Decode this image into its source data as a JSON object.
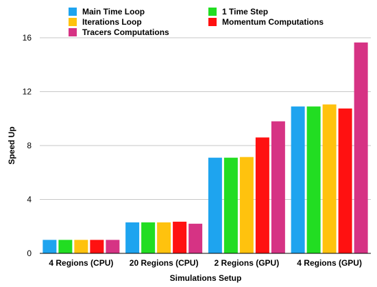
{
  "chart_data": {
    "type": "bar",
    "title": "",
    "xlabel": "Simulations Setup",
    "ylabel": "Speed Up",
    "ylim": [
      0,
      16
    ],
    "yticks": [
      "0",
      "4",
      "8",
      "12",
      "16"
    ],
    "grid": "horizontal",
    "legend_position": "top",
    "categories": [
      "4 Regions (CPU)",
      "20 Regions (CPU)",
      "2 Regions (GPU)",
      "4 Regions (GPU)"
    ],
    "series": [
      {
        "name": "Main Time Loop",
        "color": "#1ea4ef",
        "values": [
          1.0,
          2.3,
          7.1,
          10.9
        ]
      },
      {
        "name": "1 Time Step",
        "color": "#22dd22",
        "values": [
          1.0,
          2.3,
          7.1,
          10.9
        ]
      },
      {
        "name": "Iterations Loop",
        "color": "#ffc20e",
        "values": [
          1.0,
          2.3,
          7.15,
          11.05
        ]
      },
      {
        "name": "Momentum Computations",
        "color": "#ff1111",
        "values": [
          1.0,
          2.35,
          8.6,
          10.75
        ]
      },
      {
        "name": "Tracers Computations",
        "color": "#d63384",
        "values": [
          1.0,
          2.2,
          9.8,
          15.65
        ]
      }
    ]
  }
}
